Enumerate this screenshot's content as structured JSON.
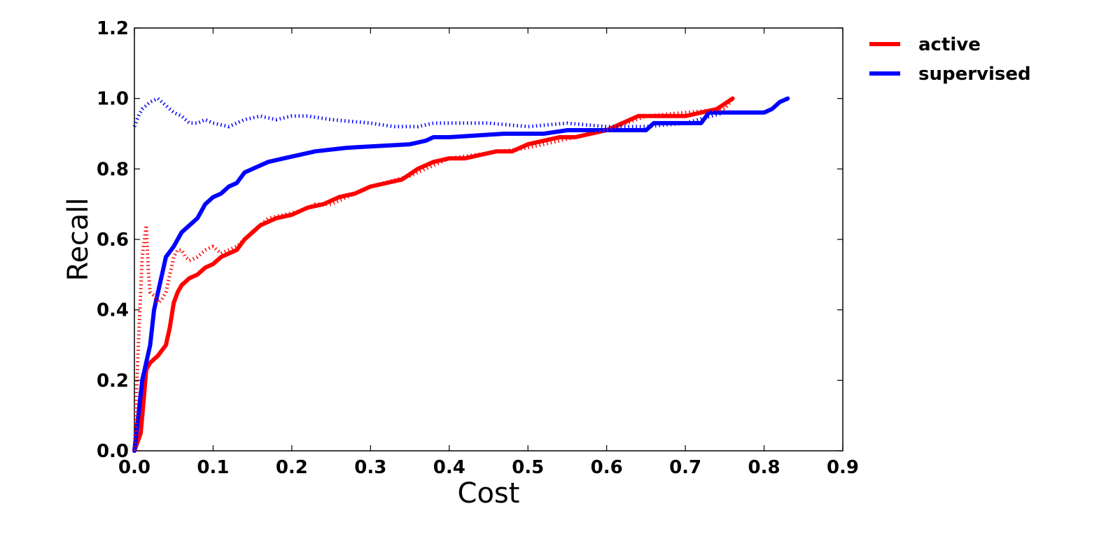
{
  "chart_data": {
    "type": "line",
    "title": "",
    "xlabel": "Cost",
    "ylabel": "Recall",
    "xlim": [
      0.0,
      0.9
    ],
    "ylim": [
      0.0,
      1.2
    ],
    "xticks": [
      "0.0",
      "0.1",
      "0.2",
      "0.3",
      "0.4",
      "0.5",
      "0.6",
      "0.7",
      "0.8",
      "0.9"
    ],
    "yticks": [
      "0.0",
      "0.2",
      "0.4",
      "0.6",
      "0.8",
      "1.0",
      "1.2"
    ],
    "grid": false,
    "legend": {
      "position": "outside-right-top"
    },
    "series": [
      {
        "name": "active",
        "color": "#ff0000",
        "style": "solid",
        "x": [
          0.0,
          0.008,
          0.012,
          0.015,
          0.02,
          0.03,
          0.04,
          0.045,
          0.05,
          0.055,
          0.06,
          0.065,
          0.07,
          0.08,
          0.09,
          0.1,
          0.11,
          0.12,
          0.13,
          0.14,
          0.15,
          0.16,
          0.18,
          0.2,
          0.22,
          0.24,
          0.26,
          0.28,
          0.3,
          0.32,
          0.34,
          0.36,
          0.38,
          0.4,
          0.42,
          0.44,
          0.46,
          0.48,
          0.5,
          0.52,
          0.54,
          0.56,
          0.58,
          0.6,
          0.62,
          0.64,
          0.66,
          0.68,
          0.7,
          0.72,
          0.74,
          0.76
        ],
        "y": [
          0.0,
          0.05,
          0.15,
          0.23,
          0.25,
          0.27,
          0.3,
          0.35,
          0.42,
          0.45,
          0.47,
          0.48,
          0.49,
          0.5,
          0.52,
          0.53,
          0.55,
          0.56,
          0.57,
          0.6,
          0.62,
          0.64,
          0.66,
          0.67,
          0.69,
          0.7,
          0.72,
          0.73,
          0.75,
          0.76,
          0.77,
          0.8,
          0.82,
          0.83,
          0.83,
          0.84,
          0.85,
          0.85,
          0.87,
          0.88,
          0.89,
          0.89,
          0.9,
          0.91,
          0.93,
          0.95,
          0.95,
          0.95,
          0.95,
          0.96,
          0.97,
          1.0
        ]
      },
      {
        "name": "supervised",
        "color": "#0000ff",
        "style": "solid",
        "x": [
          0.0,
          0.01,
          0.02,
          0.025,
          0.03,
          0.035,
          0.04,
          0.05,
          0.06,
          0.07,
          0.08,
          0.09,
          0.1,
          0.11,
          0.12,
          0.13,
          0.14,
          0.15,
          0.17,
          0.19,
          0.21,
          0.23,
          0.27,
          0.35,
          0.37,
          0.38,
          0.4,
          0.47,
          0.52,
          0.55,
          0.65,
          0.66,
          0.72,
          0.73,
          0.8,
          0.81,
          0.82,
          0.83
        ],
        "y": [
          0.0,
          0.2,
          0.3,
          0.4,
          0.45,
          0.5,
          0.55,
          0.58,
          0.62,
          0.64,
          0.66,
          0.7,
          0.72,
          0.73,
          0.75,
          0.76,
          0.79,
          0.8,
          0.82,
          0.83,
          0.84,
          0.85,
          0.86,
          0.87,
          0.88,
          0.89,
          0.89,
          0.9,
          0.9,
          0.91,
          0.91,
          0.93,
          0.93,
          0.96,
          0.96,
          0.97,
          0.99,
          1.0
        ]
      },
      {
        "name": "",
        "color": "#ff0000",
        "style": "dotted",
        "x": [
          0.0,
          0.005,
          0.01,
          0.015,
          0.018,
          0.02,
          0.025,
          0.03,
          0.035,
          0.04,
          0.045,
          0.05,
          0.055,
          0.06,
          0.065,
          0.07,
          0.08,
          0.09,
          0.1,
          0.11,
          0.12,
          0.13,
          0.14,
          0.15,
          0.17,
          0.19,
          0.21,
          0.23,
          0.25,
          0.3,
          0.35,
          0.4,
          0.5,
          0.6,
          0.65,
          0.7,
          0.75,
          0.76
        ],
        "y": [
          0.0,
          0.3,
          0.55,
          0.64,
          0.5,
          0.45,
          0.44,
          0.42,
          0.43,
          0.45,
          0.5,
          0.55,
          0.57,
          0.57,
          0.55,
          0.54,
          0.55,
          0.57,
          0.58,
          0.56,
          0.57,
          0.58,
          0.6,
          0.62,
          0.66,
          0.67,
          0.68,
          0.7,
          0.7,
          0.75,
          0.78,
          0.83,
          0.86,
          0.91,
          0.95,
          0.96,
          0.97,
          1.0
        ]
      },
      {
        "name": "",
        "color": "#0000ff",
        "style": "dotted",
        "x": [
          0.0,
          0.005,
          0.01,
          0.015,
          0.02,
          0.03,
          0.04,
          0.05,
          0.06,
          0.07,
          0.08,
          0.09,
          0.1,
          0.12,
          0.14,
          0.16,
          0.18,
          0.2,
          0.22,
          0.25,
          0.3,
          0.33,
          0.36,
          0.38,
          0.4,
          0.45,
          0.5,
          0.55,
          0.6,
          0.65,
          0.7,
          0.75,
          0.8
        ],
        "y": [
          0.92,
          0.95,
          0.97,
          0.98,
          0.99,
          1.0,
          0.98,
          0.96,
          0.95,
          0.93,
          0.93,
          0.94,
          0.93,
          0.92,
          0.94,
          0.95,
          0.94,
          0.95,
          0.95,
          0.94,
          0.93,
          0.92,
          0.92,
          0.93,
          0.93,
          0.93,
          0.92,
          0.93,
          0.92,
          0.92,
          0.93,
          0.96,
          0.96
        ]
      }
    ]
  }
}
